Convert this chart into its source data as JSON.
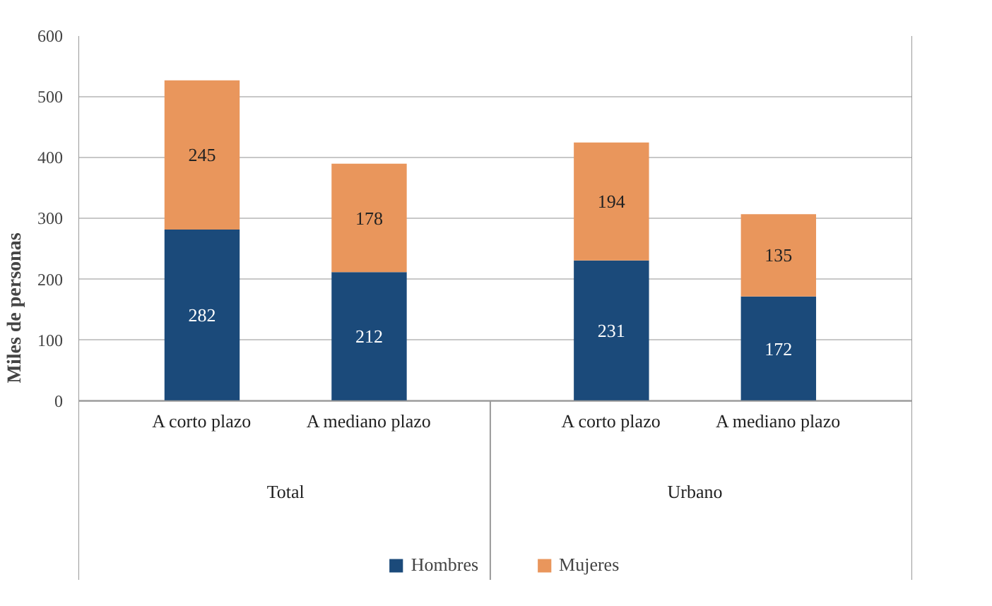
{
  "chart_data": {
    "type": "bar",
    "stacked": true,
    "ylabel": "Miles de personas",
    "categories": [
      "A corto plazo",
      "A mediano plazo",
      "A corto plazo",
      "A mediano plazo"
    ],
    "series": [
      {
        "name": "Hombres",
        "color": "#1b4a7a",
        "values": [
          282,
          212,
          231,
          172
        ]
      },
      {
        "name": "Mujeres",
        "color": "#e9965c",
        "values": [
          245,
          178,
          194,
          135
        ]
      }
    ],
    "annotations": [
      "Total",
      "Urbano"
    ],
    "ylim": [
      0,
      600
    ],
    "yticks": [
      0,
      100,
      200,
      300,
      400,
      500,
      600
    ],
    "grid": "y",
    "data_labels": true,
    "legend": "bottom"
  }
}
